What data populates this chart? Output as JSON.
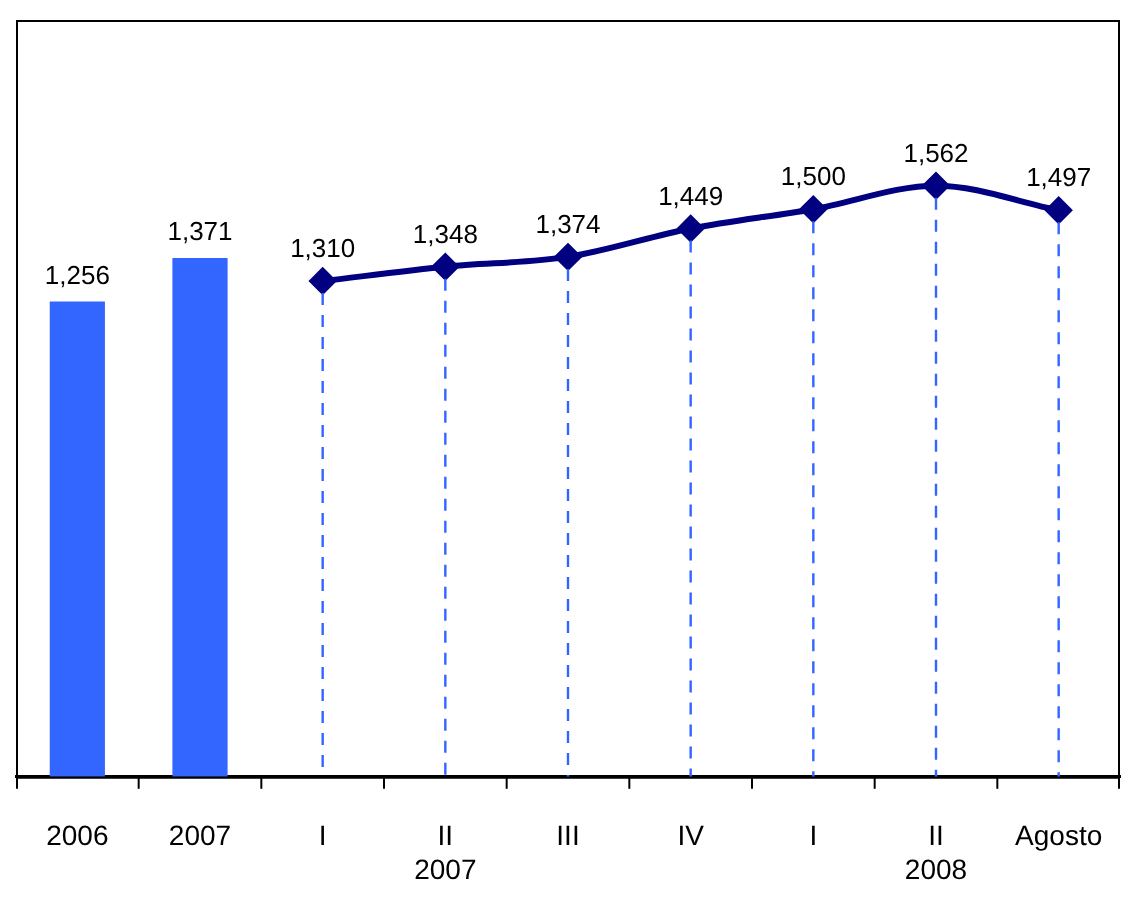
{
  "chart_data": {
    "type": "bar",
    "categories": [
      "2006",
      "2007",
      "I",
      "II\n2007",
      "III",
      "IV",
      "I",
      "II\n2008",
      "Agosto"
    ],
    "series": [
      {
        "color": "#3366ff",
        "values": [
          1256,
          1371,
          null,
          null,
          null,
          null,
          null,
          null,
          null
        ],
        "value_labels": [
          "1,256",
          "1,371",
          null,
          null,
          null,
          null,
          null,
          null,
          null
        ]
      },
      {
        "type": "line",
        "color": "#000080",
        "marker": "diamond",
        "values": [
          null,
          null,
          1310,
          1348,
          1374,
          1449,
          1500,
          1562,
          1497
        ],
        "value_labels": [
          null,
          null,
          "1,310",
          "1,348",
          "1,374",
          "1,449",
          "1,500",
          "1,562",
          "1,497"
        ]
      }
    ],
    "grid": "x",
    "legend": false
  }
}
